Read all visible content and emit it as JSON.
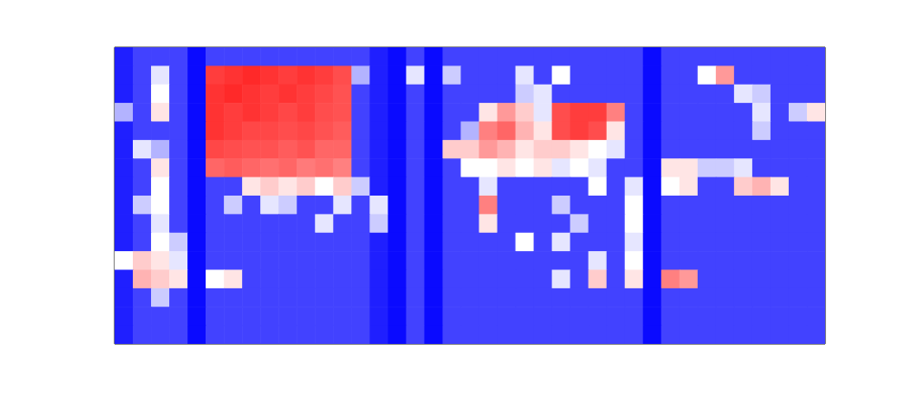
{
  "chart_data": {
    "type": "heatmap",
    "tick_labels": false,
    "xlim": [
      0,
      39
    ],
    "ylim": [
      16,
      0
    ],
    "color_range": [
      0,
      1
    ],
    "cells": [
      [
        0.06,
        0.13,
        0.13,
        0.13,
        0.02,
        0.13,
        0.13,
        0.13,
        0.13,
        0.13,
        0.13,
        0.13,
        0.13,
        0.13,
        0.06,
        0.02,
        0.13,
        0.02,
        0.13,
        0.13,
        0.13,
        0.13,
        0.13,
        0.13,
        0.13,
        0.13,
        0.13,
        0.13,
        0.13,
        0.02,
        0.13,
        0.13,
        0.13,
        0.13,
        0.13,
        0.13,
        0.13,
        0.13,
        0.13
      ],
      [
        0.06,
        0.13,
        0.45,
        0.13,
        0.02,
        0.88,
        0.9,
        0.92,
        0.9,
        0.88,
        0.9,
        0.88,
        0.85,
        0.35,
        0.06,
        0.02,
        0.45,
        0.02,
        0.4,
        0.13,
        0.13,
        0.13,
        0.45,
        0.13,
        0.5,
        0.13,
        0.13,
        0.13,
        0.13,
        0.02,
        0.13,
        0.13,
        0.5,
        0.7,
        0.13,
        0.13,
        0.13,
        0.13,
        0.13
      ],
      [
        0.06,
        0.13,
        0.5,
        0.13,
        0.02,
        0.9,
        0.92,
        0.9,
        0.88,
        0.9,
        0.88,
        0.86,
        0.84,
        0.13,
        0.06,
        0.02,
        0.13,
        0.02,
        0.13,
        0.13,
        0.13,
        0.13,
        0.4,
        0.45,
        0.13,
        0.13,
        0.13,
        0.13,
        0.13,
        0.02,
        0.13,
        0.13,
        0.13,
        0.13,
        0.45,
        0.4,
        0.13,
        0.13,
        0.13
      ],
      [
        0.35,
        0.13,
        0.55,
        0.13,
        0.02,
        0.9,
        0.88,
        0.9,
        0.88,
        0.86,
        0.88,
        0.85,
        0.84,
        0.13,
        0.06,
        0.02,
        0.13,
        0.02,
        0.13,
        0.13,
        0.55,
        0.7,
        0.6,
        0.45,
        0.85,
        0.88,
        0.88,
        0.75,
        0.13,
        0.02,
        0.13,
        0.13,
        0.13,
        0.13,
        0.13,
        0.45,
        0.13,
        0.4,
        0.55
      ],
      [
        0.06,
        0.13,
        0.13,
        0.13,
        0.02,
        0.9,
        0.88,
        0.86,
        0.86,
        0.85,
        0.86,
        0.84,
        0.82,
        0.13,
        0.06,
        0.02,
        0.13,
        0.02,
        0.13,
        0.35,
        0.75,
        0.8,
        0.65,
        0.55,
        0.85,
        0.88,
        0.85,
        0.55,
        0.13,
        0.02,
        0.13,
        0.13,
        0.13,
        0.13,
        0.13,
        0.4,
        0.13,
        0.13,
        0.13
      ],
      [
        0.06,
        0.45,
        0.35,
        0.13,
        0.02,
        0.86,
        0.85,
        0.84,
        0.84,
        0.82,
        0.84,
        0.8,
        0.8,
        0.13,
        0.06,
        0.02,
        0.13,
        0.02,
        0.6,
        0.6,
        0.7,
        0.65,
        0.55,
        0.6,
        0.6,
        0.55,
        0.5,
        0.45,
        0.13,
        0.02,
        0.13,
        0.13,
        0.13,
        0.13,
        0.13,
        0.13,
        0.13,
        0.13,
        0.13
      ],
      [
        0.06,
        0.13,
        0.55,
        0.13,
        0.02,
        0.8,
        0.82,
        0.8,
        0.78,
        0.8,
        0.76,
        0.78,
        0.75,
        0.13,
        0.06,
        0.02,
        0.13,
        0.02,
        0.13,
        0.5,
        0.5,
        0.55,
        0.5,
        0.55,
        0.45,
        0.5,
        0.45,
        0.13,
        0.13,
        0.02,
        0.55,
        0.55,
        0.4,
        0.4,
        0.45,
        0.13,
        0.13,
        0.13,
        0.13
      ],
      [
        0.06,
        0.13,
        0.5,
        0.13,
        0.02,
        0.13,
        0.13,
        0.55,
        0.6,
        0.55,
        0.6,
        0.5,
        0.6,
        0.4,
        0.06,
        0.02,
        0.13,
        0.02,
        0.13,
        0.13,
        0.45,
        0.13,
        0.13,
        0.13,
        0.13,
        0.13,
        0.5,
        0.13,
        0.45,
        0.02,
        0.5,
        0.55,
        0.13,
        0.13,
        0.6,
        0.65,
        0.55,
        0.13,
        0.13
      ],
      [
        0.06,
        0.4,
        0.5,
        0.13,
        0.02,
        0.13,
        0.4,
        0.13,
        0.45,
        0.4,
        0.13,
        0.13,
        0.45,
        0.13,
        0.45,
        0.02,
        0.13,
        0.02,
        0.13,
        0.13,
        0.75,
        0.13,
        0.13,
        0.13,
        0.4,
        0.13,
        0.13,
        0.13,
        0.5,
        0.02,
        0.13,
        0.13,
        0.13,
        0.13,
        0.13,
        0.13,
        0.13,
        0.13,
        0.13
      ],
      [
        0.06,
        0.13,
        0.45,
        0.13,
        0.02,
        0.13,
        0.13,
        0.13,
        0.13,
        0.13,
        0.13,
        0.45,
        0.13,
        0.13,
        0.4,
        0.02,
        0.13,
        0.02,
        0.13,
        0.13,
        0.55,
        0.13,
        0.13,
        0.13,
        0.13,
        0.4,
        0.13,
        0.13,
        0.5,
        0.02,
        0.13,
        0.13,
        0.13,
        0.13,
        0.13,
        0.13,
        0.13,
        0.13,
        0.13
      ],
      [
        0.06,
        0.13,
        0.5,
        0.4,
        0.02,
        0.13,
        0.13,
        0.13,
        0.13,
        0.13,
        0.13,
        0.13,
        0.13,
        0.13,
        0.06,
        0.02,
        0.13,
        0.02,
        0.13,
        0.13,
        0.13,
        0.13,
        0.5,
        0.13,
        0.45,
        0.13,
        0.13,
        0.13,
        0.45,
        0.02,
        0.13,
        0.13,
        0.13,
        0.13,
        0.13,
        0.13,
        0.13,
        0.13,
        0.13
      ],
      [
        0.5,
        0.6,
        0.55,
        0.45,
        0.02,
        0.13,
        0.13,
        0.13,
        0.13,
        0.13,
        0.13,
        0.13,
        0.13,
        0.13,
        0.06,
        0.02,
        0.13,
        0.02,
        0.13,
        0.13,
        0.13,
        0.13,
        0.13,
        0.13,
        0.13,
        0.13,
        0.45,
        0.13,
        0.5,
        0.02,
        0.13,
        0.13,
        0.13,
        0.13,
        0.13,
        0.13,
        0.13,
        0.13,
        0.13
      ],
      [
        0.06,
        0.65,
        0.6,
        0.55,
        0.02,
        0.5,
        0.55,
        0.13,
        0.13,
        0.13,
        0.13,
        0.13,
        0.13,
        0.13,
        0.06,
        0.02,
        0.13,
        0.02,
        0.13,
        0.13,
        0.13,
        0.13,
        0.13,
        0.13,
        0.45,
        0.13,
        0.6,
        0.13,
        0.55,
        0.02,
        0.75,
        0.7,
        0.13,
        0.13,
        0.13,
        0.13,
        0.13,
        0.13,
        0.13
      ],
      [
        0.06,
        0.13,
        0.4,
        0.13,
        0.02,
        0.13,
        0.13,
        0.13,
        0.13,
        0.13,
        0.13,
        0.13,
        0.13,
        0.13,
        0.06,
        0.02,
        0.13,
        0.02,
        0.13,
        0.13,
        0.13,
        0.13,
        0.13,
        0.13,
        0.13,
        0.13,
        0.13,
        0.13,
        0.13,
        0.02,
        0.13,
        0.13,
        0.13,
        0.13,
        0.13,
        0.13,
        0.13,
        0.13,
        0.13
      ],
      [
        0.06,
        0.13,
        0.13,
        0.13,
        0.02,
        0.13,
        0.13,
        0.13,
        0.13,
        0.13,
        0.13,
        0.13,
        0.13,
        0.13,
        0.06,
        0.02,
        0.13,
        0.02,
        0.13,
        0.13,
        0.13,
        0.13,
        0.13,
        0.13,
        0.13,
        0.13,
        0.13,
        0.13,
        0.13,
        0.02,
        0.13,
        0.13,
        0.13,
        0.13,
        0.13,
        0.13,
        0.13,
        0.13,
        0.13
      ],
      [
        0.06,
        0.13,
        0.13,
        0.13,
        0.02,
        0.13,
        0.13,
        0.13,
        0.13,
        0.13,
        0.13,
        0.13,
        0.13,
        0.13,
        0.06,
        0.02,
        0.13,
        0.02,
        0.13,
        0.13,
        0.13,
        0.13,
        0.13,
        0.13,
        0.13,
        0.13,
        0.13,
        0.13,
        0.13,
        0.02,
        0.13,
        0.13,
        0.13,
        0.13,
        0.13,
        0.13,
        0.13,
        0.13,
        0.13
      ]
    ]
  }
}
